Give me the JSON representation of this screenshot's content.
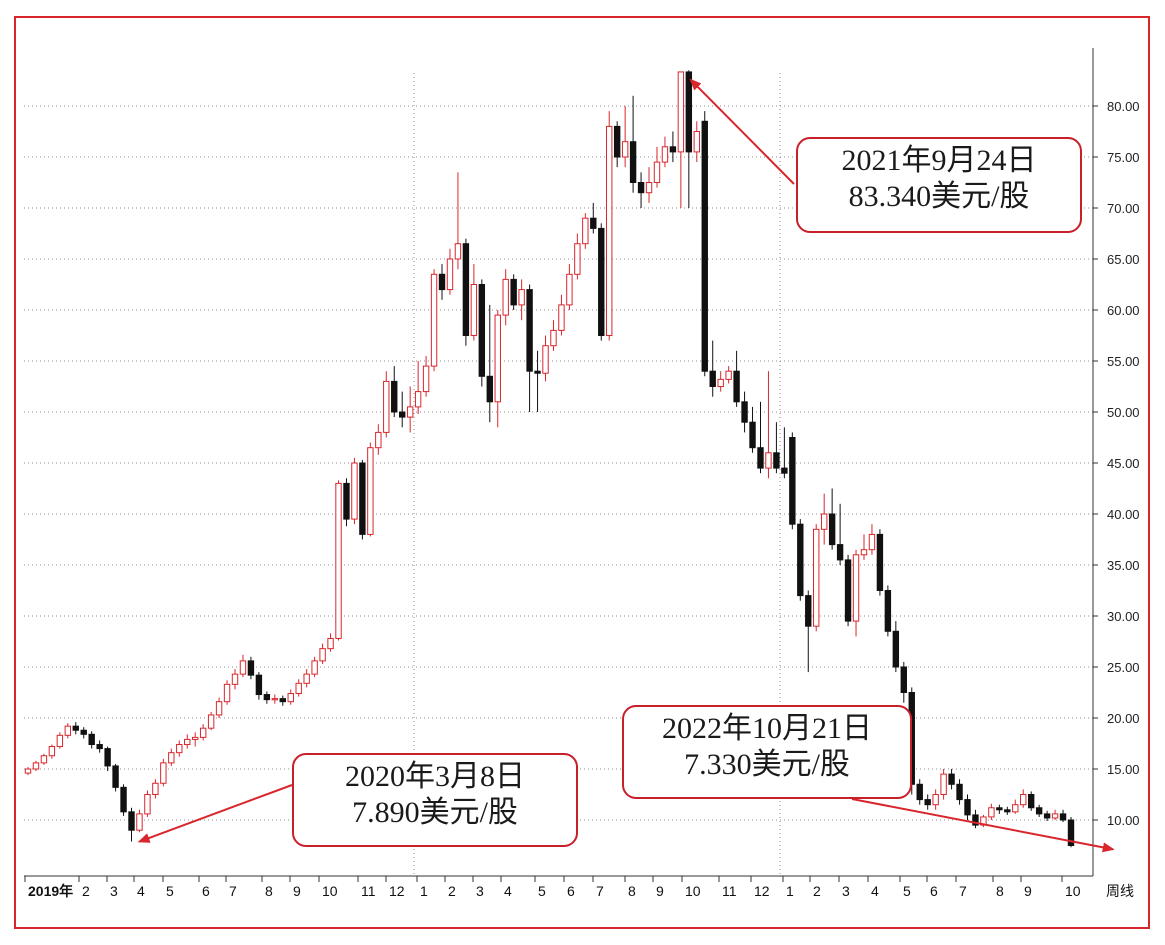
{
  "chart_data": {
    "type": "candlestick",
    "ylim": [
      5,
      85
    ],
    "y_ticks": [
      "10.00",
      "15.00",
      "20.00",
      "25.00",
      "30.00",
      "35.00",
      "40.00",
      "45.00",
      "50.00",
      "55.00",
      "60.00",
      "65.00",
      "70.00",
      "75.00",
      "80.00"
    ],
    "x_tick_labels": [
      "2019年",
      "2",
      "3",
      "4",
      "5",
      "6",
      "7",
      "8",
      "9",
      "10",
      "11",
      "12",
      "1",
      "2",
      "3",
      "4",
      "5",
      "6",
      "7",
      "8",
      "9",
      "10",
      "11",
      "12",
      "1",
      "2",
      "3",
      "4",
      "5",
      "6",
      "7",
      "8",
      "9",
      "10"
    ],
    "period_label": "周线",
    "grid": true,
    "colors": {
      "up": "#d9262c",
      "down": "#111111",
      "frame": "#d9262c",
      "grid": "#8c8c8c",
      "arrow": "#d9262c"
    },
    "series": [
      {
        "values": [
          [
            14.6,
            15.0,
            14.4,
            15.2
          ],
          [
            15.0,
            15.6,
            14.8,
            15.8
          ],
          [
            15.6,
            16.3,
            15.4,
            16.5
          ],
          [
            16.3,
            17.2,
            16.0,
            17.4
          ],
          [
            17.2,
            18.3,
            17.0,
            18.6
          ],
          [
            18.3,
            19.2,
            18.0,
            19.5
          ],
          [
            19.2,
            18.8,
            18.4,
            19.6
          ],
          [
            18.8,
            18.4,
            18.0,
            19.1
          ],
          [
            18.4,
            17.4,
            17.0,
            18.7
          ],
          [
            17.4,
            17.0,
            16.6,
            17.8
          ],
          [
            17.0,
            15.3,
            14.8,
            17.2
          ],
          [
            15.3,
            13.2,
            12.8,
            15.5
          ],
          [
            13.2,
            10.8,
            10.4,
            13.5
          ],
          [
            10.8,
            9.0,
            7.89,
            11.2
          ],
          [
            9.0,
            10.6,
            8.8,
            11.0
          ],
          [
            10.6,
            12.5,
            10.3,
            12.9
          ],
          [
            12.5,
            13.6,
            12.1,
            14.0
          ],
          [
            13.6,
            15.6,
            13.3,
            16.0
          ],
          [
            15.6,
            16.6,
            15.3,
            17.0
          ],
          [
            16.6,
            17.4,
            16.2,
            17.8
          ],
          [
            17.4,
            17.9,
            17.0,
            18.4
          ],
          [
            17.9,
            18.1,
            17.2,
            18.6
          ],
          [
            18.1,
            19.0,
            17.8,
            19.4
          ],
          [
            19.0,
            20.3,
            18.8,
            20.6
          ],
          [
            20.3,
            21.6,
            20.0,
            22.0
          ],
          [
            21.6,
            23.3,
            21.3,
            23.7
          ],
          [
            23.3,
            24.3,
            22.8,
            24.8
          ],
          [
            24.3,
            25.6,
            24.0,
            26.2
          ],
          [
            25.6,
            24.2,
            23.8,
            26.0
          ],
          [
            24.2,
            22.3,
            21.8,
            24.5
          ],
          [
            22.3,
            21.8,
            21.4,
            22.6
          ],
          [
            21.8,
            21.9,
            21.4,
            22.3
          ],
          [
            21.9,
            21.6,
            21.2,
            22.2
          ],
          [
            21.6,
            22.4,
            21.3,
            22.8
          ],
          [
            22.4,
            23.4,
            22.1,
            23.8
          ],
          [
            23.4,
            24.3,
            23.0,
            24.8
          ],
          [
            24.3,
            25.6,
            24.0,
            26.0
          ],
          [
            25.6,
            26.8,
            25.3,
            27.3
          ],
          [
            26.8,
            27.8,
            26.5,
            28.3
          ],
          [
            27.8,
            43.0,
            27.6,
            43.3
          ],
          [
            43.0,
            39.5,
            38.8,
            43.5
          ],
          [
            39.5,
            45.0,
            39.0,
            45.5
          ],
          [
            45.0,
            38.0,
            37.5,
            45.3
          ],
          [
            38.0,
            46.5,
            37.8,
            47.0
          ],
          [
            46.5,
            48.0,
            45.8,
            48.8
          ],
          [
            48.0,
            53.0,
            47.5,
            54.0
          ],
          [
            53.0,
            50.0,
            49.5,
            54.5
          ],
          [
            50.0,
            49.5,
            48.5,
            52.0
          ],
          [
            49.5,
            50.5,
            48.0,
            52.5
          ],
          [
            50.5,
            52.0,
            49.8,
            55.0
          ],
          [
            52.0,
            54.5,
            51.5,
            55.5
          ],
          [
            54.5,
            63.5,
            54.0,
            64.0
          ],
          [
            63.5,
            62.0,
            61.0,
            64.5
          ],
          [
            62.0,
            65.0,
            61.5,
            66.0
          ],
          [
            65.0,
            66.5,
            64.0,
            73.5
          ],
          [
            66.5,
            57.5,
            56.5,
            67.0
          ],
          [
            57.5,
            62.5,
            57.0,
            64.5
          ],
          [
            62.5,
            53.5,
            52.5,
            63.0
          ],
          [
            53.5,
            51.0,
            49.0,
            60.5
          ],
          [
            51.0,
            59.5,
            48.5,
            60.0
          ],
          [
            59.5,
            63.0,
            58.5,
            64.0
          ],
          [
            63.0,
            60.5,
            60.0,
            63.5
          ],
          [
            60.5,
            62.0,
            59.0,
            63.0
          ],
          [
            62.0,
            54.0,
            50.0,
            62.5
          ],
          [
            54.0,
            53.8,
            50.0,
            56.0
          ],
          [
            53.8,
            56.5,
            53.0,
            57.5
          ],
          [
            56.5,
            58.0,
            56.0,
            59.0
          ],
          [
            58.0,
            60.5,
            57.5,
            61.5
          ],
          [
            60.5,
            63.5,
            60.0,
            64.5
          ],
          [
            63.5,
            66.5,
            63.0,
            67.5
          ],
          [
            66.5,
            69.0,
            66.0,
            69.5
          ],
          [
            69.0,
            68.0,
            67.5,
            70.5
          ],
          [
            68.0,
            57.5,
            57.0,
            68.5
          ],
          [
            57.5,
            78.0,
            57.0,
            79.5
          ],
          [
            78.0,
            75.0,
            74.0,
            78.5
          ],
          [
            75.0,
            76.5,
            74.0,
            80.0
          ],
          [
            76.5,
            72.5,
            71.5,
            81.0
          ],
          [
            72.5,
            71.5,
            70.0,
            73.5
          ],
          [
            71.5,
            72.5,
            70.5,
            74.0
          ],
          [
            72.5,
            74.5,
            72.0,
            76.0
          ],
          [
            74.5,
            76.0,
            74.0,
            77.0
          ],
          [
            76.0,
            75.5,
            74.5,
            77.5
          ],
          [
            75.5,
            83.34,
            70.0,
            83.34
          ],
          [
            83.34,
            75.5,
            70.0,
            83.5
          ],
          [
            75.5,
            77.5,
            74.5,
            78.5
          ],
          [
            78.5,
            54.0,
            53.5,
            79.5
          ],
          [
            54.0,
            52.5,
            51.5,
            57.0
          ],
          [
            52.5,
            53.2,
            52.0,
            54.0
          ],
          [
            53.2,
            54.0,
            52.8,
            54.5
          ],
          [
            54.0,
            51.0,
            50.5,
            56.0
          ],
          [
            51.0,
            49.0,
            48.0,
            52.0
          ],
          [
            49.0,
            46.5,
            46.0,
            50.5
          ],
          [
            46.5,
            44.5,
            44.0,
            51.0
          ],
          [
            44.5,
            46.0,
            43.5,
            54.0
          ],
          [
            46.0,
            44.5,
            44.0,
            49.0
          ],
          [
            44.5,
            44.0,
            43.5,
            48.5
          ],
          [
            47.5,
            39.0,
            38.5,
            48.0
          ],
          [
            39.0,
            32.0,
            31.5,
            39.5
          ],
          [
            32.0,
            29.0,
            24.5,
            32.5
          ],
          [
            29.0,
            38.5,
            28.5,
            39.0
          ],
          [
            38.5,
            40.0,
            37.0,
            42.0
          ],
          [
            40.0,
            37.0,
            36.5,
            42.5
          ],
          [
            37.0,
            35.5,
            35.0,
            41.0
          ],
          [
            35.5,
            29.5,
            29.0,
            36.0
          ],
          [
            29.5,
            36.0,
            28.0,
            36.5
          ],
          [
            36.0,
            36.5,
            35.5,
            38.0
          ],
          [
            36.5,
            38.0,
            36.0,
            39.0
          ],
          [
            38.0,
            32.5,
            32.0,
            38.5
          ],
          [
            32.5,
            28.5,
            28.0,
            33.0
          ],
          [
            28.5,
            25.0,
            24.5,
            29.5
          ],
          [
            25.0,
            22.5,
            21.5,
            25.5
          ],
          [
            22.5,
            13.5,
            12.5,
            23.0
          ],
          [
            13.5,
            12.0,
            11.5,
            14.0
          ],
          [
            12.0,
            11.5,
            11.0,
            12.5
          ],
          [
            11.5,
            12.5,
            11.0,
            13.0
          ],
          [
            12.5,
            14.5,
            12.0,
            15.0
          ],
          [
            14.5,
            13.5,
            13.0,
            15.0
          ],
          [
            13.5,
            12.0,
            11.5,
            14.0
          ],
          [
            12.0,
            10.5,
            10.0,
            12.5
          ],
          [
            10.5,
            9.5,
            9.2,
            11.0
          ],
          [
            9.5,
            10.3,
            9.3,
            10.5
          ],
          [
            10.3,
            11.2,
            10.0,
            11.6
          ],
          [
            11.2,
            11.0,
            10.6,
            11.5
          ],
          [
            11.0,
            10.8,
            10.5,
            11.3
          ],
          [
            10.8,
            11.5,
            10.6,
            12.0
          ],
          [
            11.5,
            12.5,
            11.2,
            13.0
          ],
          [
            12.5,
            11.2,
            10.9,
            12.8
          ],
          [
            11.2,
            10.6,
            10.3,
            11.5
          ],
          [
            10.6,
            10.2,
            9.9,
            10.9
          ],
          [
            10.2,
            10.6,
            10.0,
            11.0
          ],
          [
            10.6,
            10.0,
            9.8,
            11.0
          ],
          [
            10.0,
            7.5,
            7.33,
            10.3
          ]
        ]
      }
    ],
    "annotations": [
      {
        "line1": "2021年9月24日",
        "line2": "83.340美元/股",
        "price": 83.34,
        "candle_index": 82
      },
      {
        "line1": "2020年3月8日",
        "line2": "7.890美元/股",
        "price": 7.89,
        "candle_index": 13
      },
      {
        "line1": "2022年10月21日",
        "line2": "7.330美元/股",
        "price": 7.33,
        "candle_index": 137
      }
    ]
  }
}
